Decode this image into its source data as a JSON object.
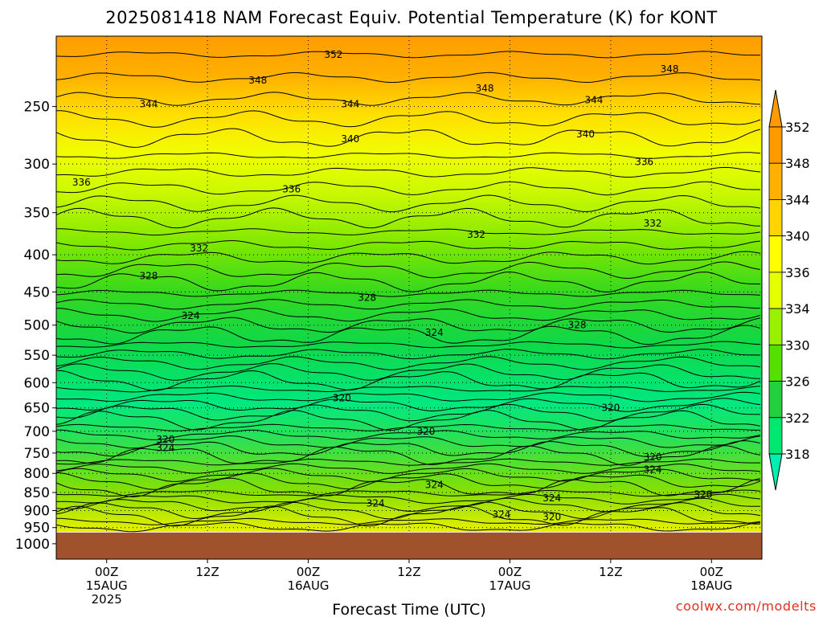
{
  "chart_data": {
    "type": "heatmap",
    "title": "2025081418 NAM Forecast Equiv. Potential Temperature (K) for KONT",
    "xlabel": "Forecast Time (UTC)",
    "ylabel": "",
    "x_ticks": [
      {
        "hour": 6,
        "lines": [
          "00Z",
          "15AUG",
          "2025"
        ]
      },
      {
        "hour": 18,
        "lines": [
          "12Z"
        ]
      },
      {
        "hour": 30,
        "lines": [
          "00Z",
          "16AUG"
        ]
      },
      {
        "hour": 42,
        "lines": [
          "12Z"
        ]
      },
      {
        "hour": 54,
        "lines": [
          "00Z",
          "17AUG"
        ]
      },
      {
        "hour": 66,
        "lines": [
          "12Z"
        ]
      },
      {
        "hour": 78,
        "lines": [
          "00Z",
          "18AUG"
        ]
      }
    ],
    "xlim_hours": [
      0,
      84
    ],
    "y_ticks": [
      250,
      300,
      350,
      400,
      450,
      500,
      550,
      600,
      650,
      700,
      750,
      800,
      850,
      900,
      950,
      1000
    ],
    "ylim_hPa": [
      200,
      1050
    ],
    "surface_pressure_hPa": 965,
    "colorbar": {
      "ticks": [
        352,
        348,
        344,
        340,
        336,
        334,
        330,
        326,
        322,
        318
      ],
      "colors": [
        "#ff9a00",
        "#ffb000",
        "#ffd400",
        "#ffff00",
        "#e6ff00",
        "#99f000",
        "#55e000",
        "#22d040",
        "#00e870",
        "#00f0b0"
      ]
    },
    "contour_labels": [
      {
        "hour": 33,
        "hPa": 212,
        "text": "352"
      },
      {
        "hour": 73,
        "hPa": 222,
        "text": "348"
      },
      {
        "hour": 24,
        "hPa": 230,
        "text": "348"
      },
      {
        "hour": 51,
        "hPa": 236,
        "text": "348"
      },
      {
        "hour": 11,
        "hPa": 248,
        "text": "344"
      },
      {
        "hour": 35,
        "hPa": 248,
        "text": "344"
      },
      {
        "hour": 64,
        "hPa": 245,
        "text": "344"
      },
      {
        "hour": 35,
        "hPa": 277,
        "text": "340"
      },
      {
        "hour": 63,
        "hPa": 273,
        "text": "340"
      },
      {
        "hour": 3,
        "hPa": 318,
        "text": "336"
      },
      {
        "hour": 28,
        "hPa": 325,
        "text": "336"
      },
      {
        "hour": 70,
        "hPa": 298,
        "text": "336"
      },
      {
        "hour": 50,
        "hPa": 375,
        "text": "332"
      },
      {
        "hour": 17,
        "hPa": 392,
        "text": "332"
      },
      {
        "hour": 71,
        "hPa": 362,
        "text": "332"
      },
      {
        "hour": 11,
        "hPa": 428,
        "text": "328"
      },
      {
        "hour": 37,
        "hPa": 458,
        "text": "328"
      },
      {
        "hour": 62,
        "hPa": 500,
        "text": "328"
      },
      {
        "hour": 16,
        "hPa": 485,
        "text": "324"
      },
      {
        "hour": 45,
        "hPa": 512,
        "text": "324"
      },
      {
        "hour": 34,
        "hPa": 630,
        "text": "320"
      },
      {
        "hour": 66,
        "hPa": 650,
        "text": "320"
      },
      {
        "hour": 44,
        "hPa": 700,
        "text": "320"
      },
      {
        "hour": 13,
        "hPa": 718,
        "text": "320"
      },
      {
        "hour": 13,
        "hPa": 738,
        "text": "324"
      },
      {
        "hour": 45,
        "hPa": 830,
        "text": "324"
      },
      {
        "hour": 38,
        "hPa": 880,
        "text": "324"
      },
      {
        "hour": 59,
        "hPa": 865,
        "text": "324"
      },
      {
        "hour": 53,
        "hPa": 912,
        "text": "324"
      },
      {
        "hour": 59,
        "hPa": 918,
        "text": "320"
      },
      {
        "hour": 71,
        "hPa": 760,
        "text": "320"
      },
      {
        "hour": 71,
        "hPa": 790,
        "text": "324"
      },
      {
        "hour": 77,
        "hPa": 855,
        "text": "328"
      }
    ]
  },
  "credit": "coolwx.com/modelts"
}
